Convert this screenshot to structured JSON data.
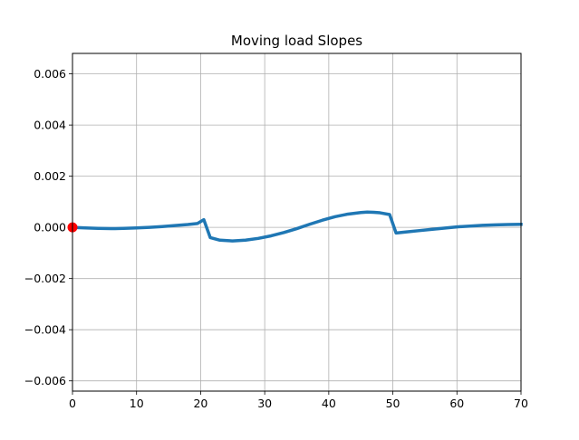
{
  "chart_data": {
    "type": "line",
    "title": "Moving load Slopes",
    "xlabel": "",
    "ylabel": "",
    "xlim": [
      0,
      70
    ],
    "ylim": [
      -0.0064,
      0.0068
    ],
    "grid": true,
    "x_ticks": [
      0,
      10,
      20,
      30,
      40,
      50,
      60,
      70
    ],
    "x_tick_labels": [
      "0",
      "10",
      "20",
      "30",
      "40",
      "50",
      "60",
      "70"
    ],
    "y_ticks": [
      0.006,
      0.004,
      0.002,
      0.0,
      -0.002,
      -0.004,
      -0.006
    ],
    "y_tick_labels": [
      "0.006",
      "0.004",
      "0.002",
      "0.000",
      "−0.002",
      "−0.004",
      "−0.006"
    ],
    "series": [
      {
        "color": "#1f77b4",
        "x": [
          0,
          2,
          4,
          6,
          8,
          10,
          12,
          14,
          16,
          18,
          19.5,
          20.5,
          21.5,
          23,
          25,
          27,
          29,
          31,
          33,
          35,
          37,
          39,
          41,
          43,
          45,
          46,
          47,
          48,
          49.5,
          50.5,
          52,
          54,
          56,
          58,
          60,
          62,
          64,
          66,
          68,
          70
        ],
        "y": [
          0.0,
          -2e-05,
          -4e-05,
          -5e-05,
          -4e-05,
          -2e-05,
          0.0,
          3e-05,
          7e-05,
          0.00011,
          0.00015,
          0.0003,
          -0.0004,
          -0.0005,
          -0.00053,
          -0.0005,
          -0.00043,
          -0.00033,
          -0.0002,
          -5e-05,
          0.00012,
          0.00028,
          0.00042,
          0.00052,
          0.00058,
          0.0006,
          0.00059,
          0.00057,
          0.0005,
          -0.00022,
          -0.00018,
          -0.00013,
          -8e-05,
          -3e-05,
          2e-05,
          5e-05,
          8e-05,
          0.0001,
          0.00011,
          0.00012
        ]
      }
    ],
    "marker": {
      "x": 0,
      "y": 0,
      "color": "#ff0000"
    },
    "colors": {
      "line": "#1f77b4",
      "marker": "#ff0000",
      "grid": "#b0b0b0",
      "axes": "#000000"
    }
  }
}
